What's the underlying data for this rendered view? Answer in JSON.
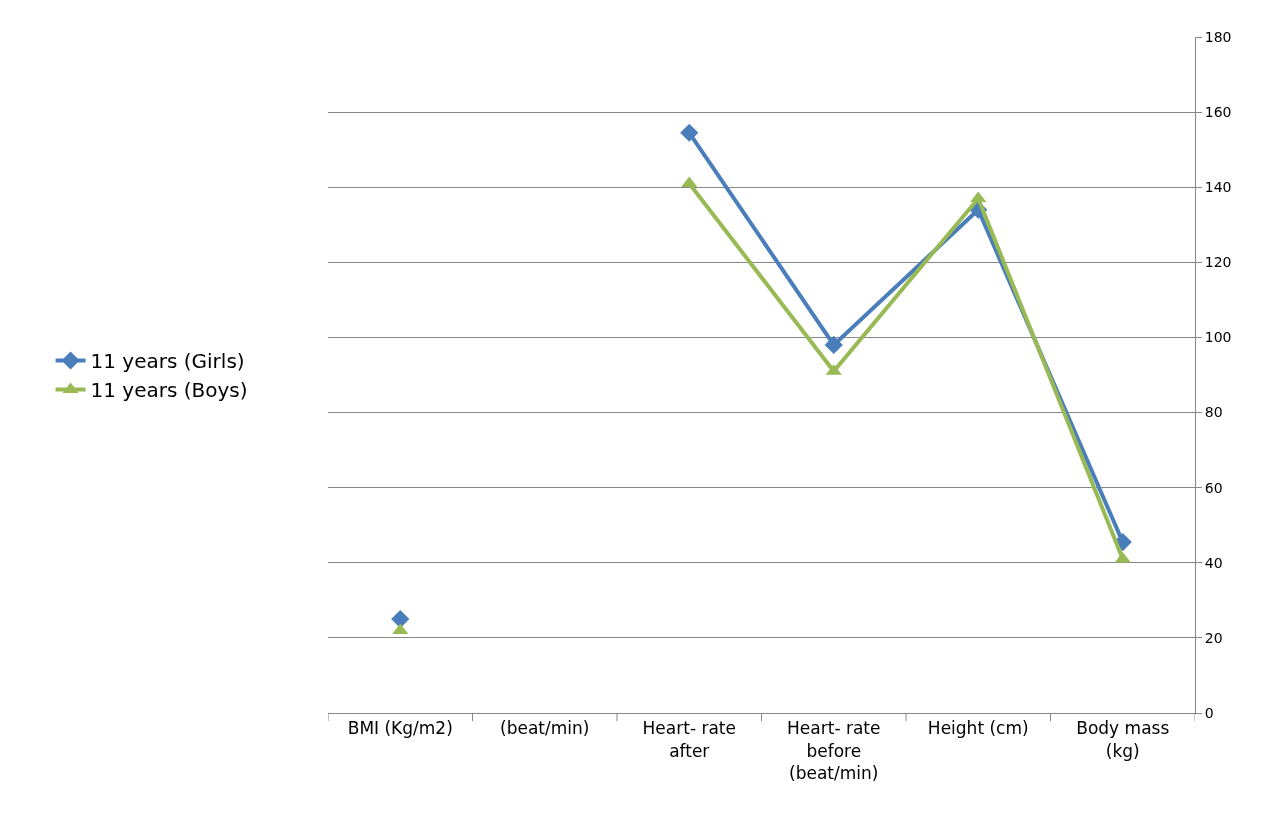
{
  "chart_data": {
    "type": "line",
    "categories": [
      "BMI (Kg/m2)",
      "(beat/min)",
      "Heart- rate after",
      "Heart- rate before (beat/min)",
      "Height (cm)",
      "Body mass (kg)"
    ],
    "series": [
      {
        "name": "11 years (Girls)",
        "color": "#4a7ebb",
        "marker": "diamond",
        "values": [
          25,
          null,
          154.5,
          98,
          134,
          45.5
        ]
      },
      {
        "name": "11 years (Boys)",
        "color": "#98b954",
        "marker": "triangle",
        "values": [
          22,
          null,
          141,
          91,
          137,
          41
        ]
      }
    ],
    "ylim": [
      0,
      180
    ],
    "yticks": [
      0,
      20,
      40,
      60,
      80,
      100,
      120,
      140,
      160,
      180
    ],
    "grid": "y",
    "legend": "left",
    "line_style": "solid"
  }
}
